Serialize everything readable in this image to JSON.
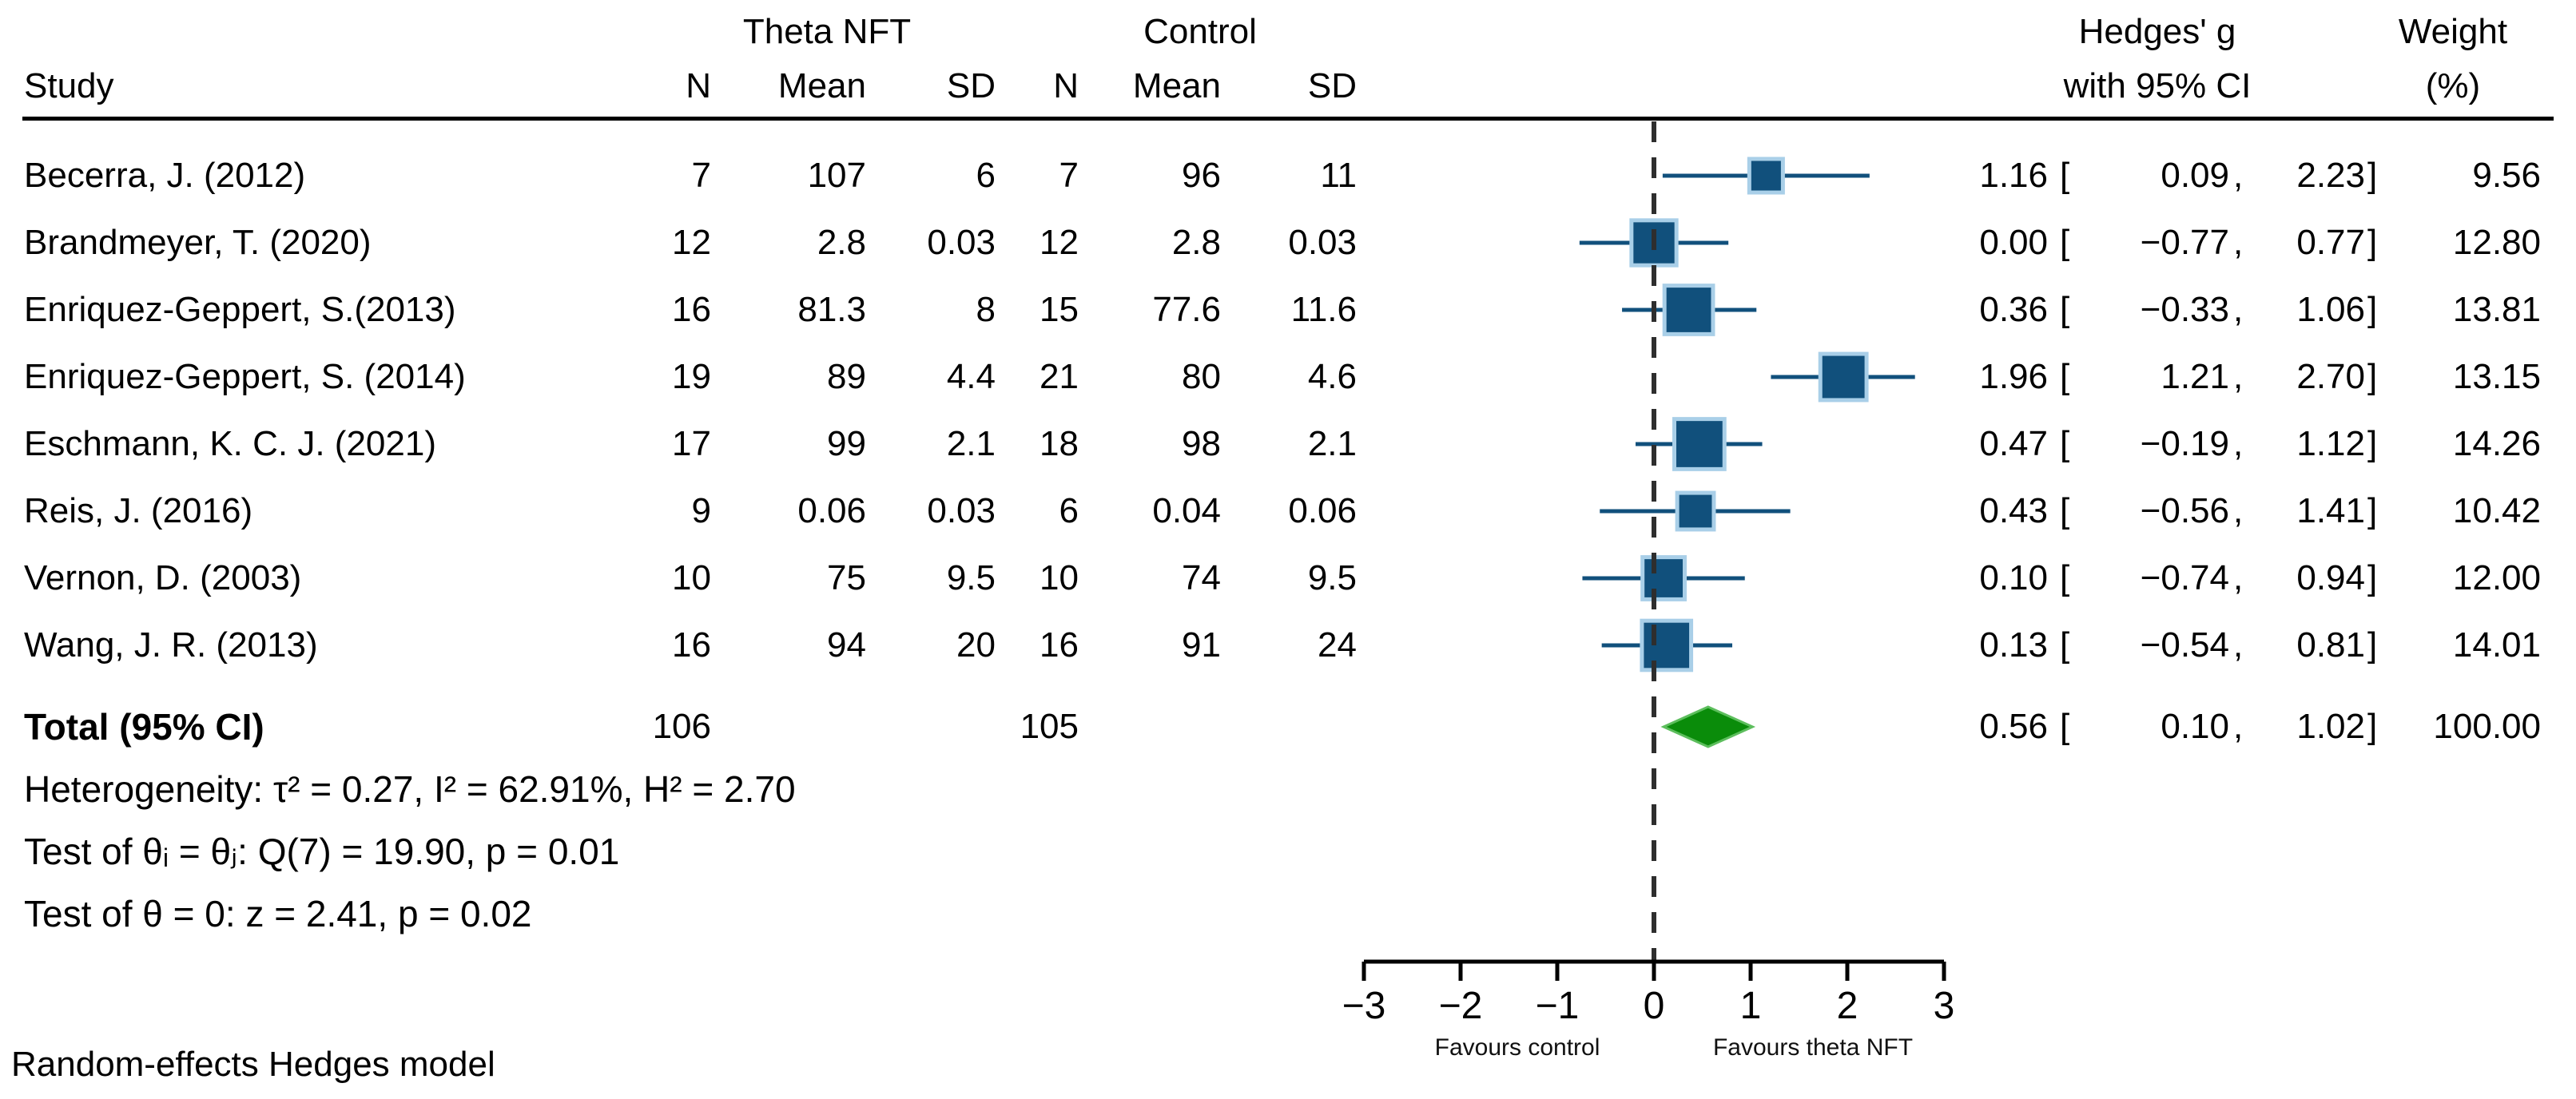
{
  "header": {
    "group1": "Theta NFT",
    "group2": "Control",
    "study_col": "Study",
    "n_col": "N",
    "mean_col": "Mean",
    "sd_col": "SD",
    "effect_col_line1": "Hedges' g",
    "effect_col_line2": "with 95% CI",
    "weight_col_line1": "Weight",
    "weight_col_line2": "(%)"
  },
  "stats": {
    "heterogeneity": "Heterogeneity: τ² = 0.27, I² = 62.91%, H² = 2.70",
    "test_homogeneity": "Test of θᵢ = θⱼ: Q(7) = 19.90, p = 0.01",
    "test_overall": "Test of θ = 0: z = 2.41, p = 0.02"
  },
  "footer": {
    "model_label": "Random-effects Hedges model"
  },
  "punctuation": {
    "open_bracket": "[",
    "comma": ",",
    "close_bracket": "]"
  },
  "total_row": {
    "label": "Total (95% CI)",
    "n1": "106",
    "n2": "105",
    "g": "0.56",
    "lo": "0.10",
    "hi": "1.02",
    "weight": "100.00"
  },
  "axis": {
    "min": -3,
    "max": 3,
    "tick_values": [
      -3,
      -2,
      -1,
      0,
      1,
      2,
      3
    ],
    "tick_labels": [
      "−3",
      "−2",
      "−1",
      "0",
      "1",
      "2",
      "3"
    ],
    "favours_left": "Favours control",
    "favours_right": "Favours theta NFT"
  },
  "colors": {
    "marker": "#11507C",
    "marker_halo": "#A9CFE8",
    "ci_line": "#11507C",
    "diamond": "#0A8C0A",
    "diamond_edge": "#5DBE5D",
    "null_line": "#2E2E2E",
    "axis": "#000000",
    "text": "#000000"
  },
  "chart_data": {
    "type": "forest",
    "title": "",
    "effect_label": "Hedges' g with 95% CI",
    "model": "Random-effects Hedges model",
    "xlim": [
      -3,
      3
    ],
    "x_ticks": [
      -3,
      -2,
      -1,
      0,
      1,
      2,
      3
    ],
    "null_line": 0,
    "favours": [
      "Favours control",
      "Favours theta NFT"
    ],
    "studies": [
      {
        "study": "Becerra, J. (2012)",
        "treatment": {
          "n": 7,
          "mean": 107,
          "sd": 6
        },
        "control": {
          "n": 7,
          "mean": 96,
          "sd": 11
        },
        "g": 1.16,
        "ci": [
          0.09,
          2.23
        ],
        "weight_pct": 9.56,
        "display": {
          "name": "Becerra, J. (2012)",
          "n1": "7",
          "mean1": "107",
          "sd1": "6",
          "n2": "7",
          "mean2": "96",
          "sd2": "11",
          "g": "1.16",
          "lo": "0.09",
          "hi": "2.23",
          "weight": "9.56"
        }
      },
      {
        "study": "Brandmeyer, T. (2020)",
        "treatment": {
          "n": 12,
          "mean": 2.8,
          "sd": 0.03
        },
        "control": {
          "n": 12,
          "mean": 2.8,
          "sd": 0.03
        },
        "g": 0.0,
        "ci": [
          -0.77,
          0.77
        ],
        "weight_pct": 12.8,
        "display": {
          "name": "Brandmeyer, T. (2020)",
          "n1": "12",
          "mean1": "2.8",
          "sd1": "0.03",
          "n2": "12",
          "mean2": "2.8",
          "sd2": "0.03",
          "g": "0.00",
          "lo": "−0.77",
          "hi": "0.77",
          "weight": "12.80"
        }
      },
      {
        "study": "Enriquez-Geppert, S.(2013)",
        "treatment": {
          "n": 16,
          "mean": 81.3,
          "sd": 8
        },
        "control": {
          "n": 15,
          "mean": 77.6,
          "sd": 11.6
        },
        "g": 0.36,
        "ci": [
          -0.33,
          1.06
        ],
        "weight_pct": 13.81,
        "display": {
          "name": "Enriquez-Geppert, S.(2013)",
          "n1": "16",
          "mean1": "81.3",
          "sd1": "8",
          "n2": "15",
          "mean2": "77.6",
          "sd2": "11.6",
          "g": "0.36",
          "lo": "−0.33",
          "hi": "1.06",
          "weight": "13.81"
        }
      },
      {
        "study": "Enriquez-Geppert, S. (2014)",
        "treatment": {
          "n": 19,
          "mean": 89,
          "sd": 4.4
        },
        "control": {
          "n": 21,
          "mean": 80,
          "sd": 4.6
        },
        "g": 1.96,
        "ci": [
          1.21,
          2.7
        ],
        "weight_pct": 13.15,
        "display": {
          "name": "Enriquez-Geppert, S. (2014)",
          "n1": "19",
          "mean1": "89",
          "sd1": "4.4",
          "n2": "21",
          "mean2": "80",
          "sd2": "4.6",
          "g": "1.96",
          "lo": "1.21",
          "hi": "2.70",
          "weight": "13.15"
        }
      },
      {
        "study": "Eschmann, K. C. J. (2021)",
        "treatment": {
          "n": 17,
          "mean": 99,
          "sd": 2.1
        },
        "control": {
          "n": 18,
          "mean": 98,
          "sd": 2.1
        },
        "g": 0.47,
        "ci": [
          -0.19,
          1.12
        ],
        "weight_pct": 14.26,
        "display": {
          "name": "Eschmann, K. C. J. (2021)",
          "n1": "17",
          "mean1": "99",
          "sd1": "2.1",
          "n2": "18",
          "mean2": "98",
          "sd2": "2.1",
          "g": "0.47",
          "lo": "−0.19",
          "hi": "1.12",
          "weight": "14.26"
        }
      },
      {
        "study": "Reis, J. (2016)",
        "treatment": {
          "n": 9,
          "mean": 0.06,
          "sd": 0.03
        },
        "control": {
          "n": 6,
          "mean": 0.04,
          "sd": 0.06
        },
        "g": 0.43,
        "ci": [
          -0.56,
          1.41
        ],
        "weight_pct": 10.42,
        "display": {
          "name": "Reis, J. (2016)",
          "n1": "9",
          "mean1": "0.06",
          "sd1": "0.03",
          "n2": "6",
          "mean2": "0.04",
          "sd2": "0.06",
          "g": "0.43",
          "lo": "−0.56",
          "hi": "1.41",
          "weight": "10.42"
        }
      },
      {
        "study": "Vernon, D. (2003)",
        "treatment": {
          "n": 10,
          "mean": 75,
          "sd": 9.5
        },
        "control": {
          "n": 10,
          "mean": 74,
          "sd": 9.5
        },
        "g": 0.1,
        "ci": [
          -0.74,
          0.94
        ],
        "weight_pct": 12.0,
        "display": {
          "name": "Vernon, D. (2003)",
          "n1": "10",
          "mean1": "75",
          "sd1": "9.5",
          "n2": "10",
          "mean2": "74",
          "sd2": "9.5",
          "g": "0.10",
          "lo": "−0.74",
          "hi": "0.94",
          "weight": "12.00"
        }
      },
      {
        "study": "Wang, J. R. (2013)",
        "treatment": {
          "n": 16,
          "mean": 94,
          "sd": 20
        },
        "control": {
          "n": 16,
          "mean": 91,
          "sd": 24
        },
        "g": 0.13,
        "ci": [
          -0.54,
          0.81
        ],
        "weight_pct": 14.01,
        "display": {
          "name": "Wang, J. R. (2013)",
          "n1": "16",
          "mean1": "94",
          "sd1": "20",
          "n2": "16",
          "mean2": "91",
          "sd2": "24",
          "g": "0.13",
          "lo": "−0.54",
          "hi": "0.81",
          "weight": "14.01"
        }
      }
    ],
    "total": {
      "label": "Total (95% CI)",
      "n_treatment": 106,
      "n_control": 105,
      "g": 0.56,
      "ci": [
        0.1,
        1.02
      ],
      "weight_pct": 100.0
    },
    "heterogeneity": {
      "tau2": 0.27,
      "I2_pct": 62.91,
      "H2": 2.7
    },
    "test_homogeneity": {
      "Q_df": 7,
      "Q": 19.9,
      "p": 0.01
    },
    "test_overall": {
      "z": 2.41,
      "p": 0.02
    }
  }
}
